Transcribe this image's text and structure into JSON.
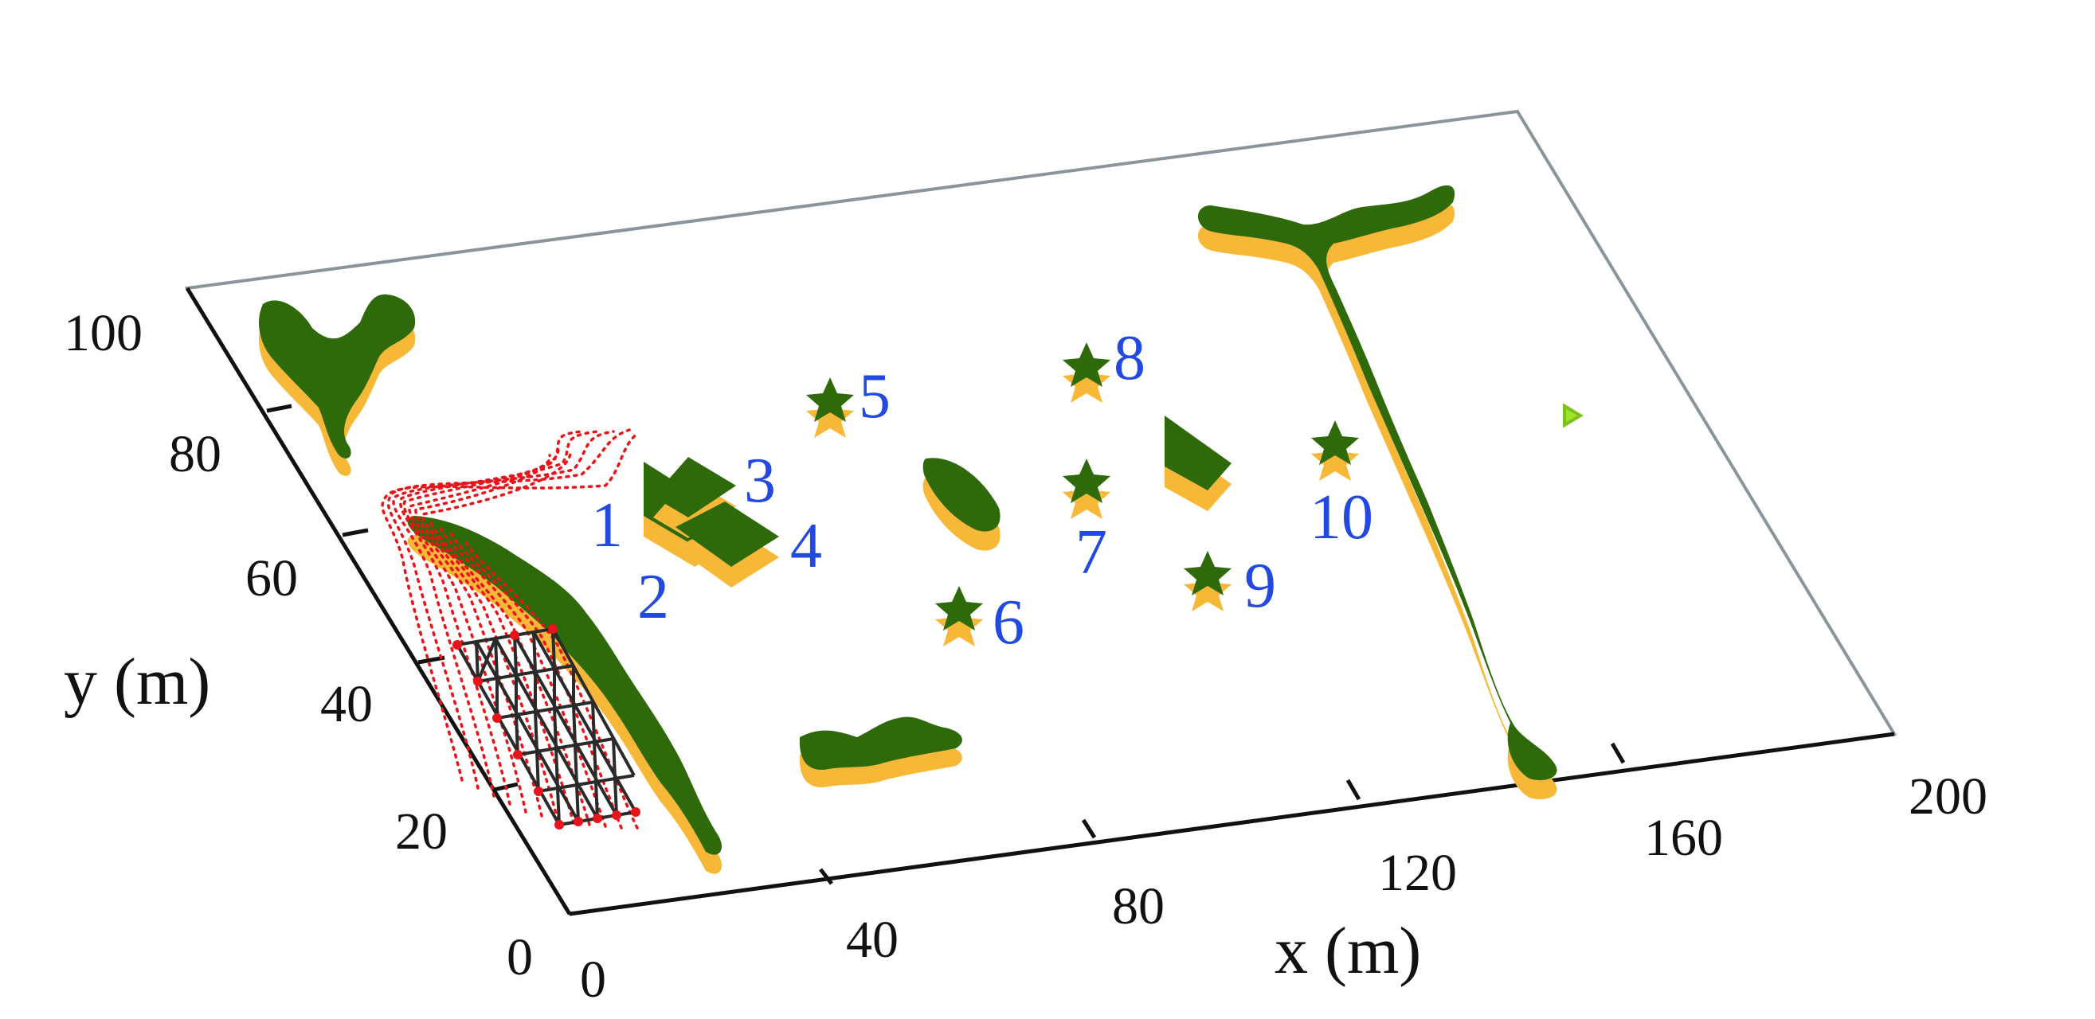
{
  "axes": {
    "x_title": "x (m)",
    "y_title": "y (m)",
    "x_ticks": [
      "0",
      "40",
      "80",
      "120",
      "160",
      "200"
    ],
    "y_ticks": [
      "0",
      "20",
      "40",
      "60",
      "80",
      "100"
    ]
  },
  "obstacle_labels": [
    "1",
    "2",
    "3",
    "4",
    "5",
    "6",
    "7",
    "8",
    "9",
    "10"
  ],
  "colors": {
    "obstacle_top": "#2f6a0a",
    "obstacle_side": "#f7b838",
    "trajectory": "#e8141a",
    "formation": "#2a2a2a",
    "formation_nodes": "#e8141a",
    "label_text": "#2249e0",
    "goal_marker": "#9ee22a",
    "floor_edge": "#8a9499",
    "axis_line": "#111111"
  }
}
